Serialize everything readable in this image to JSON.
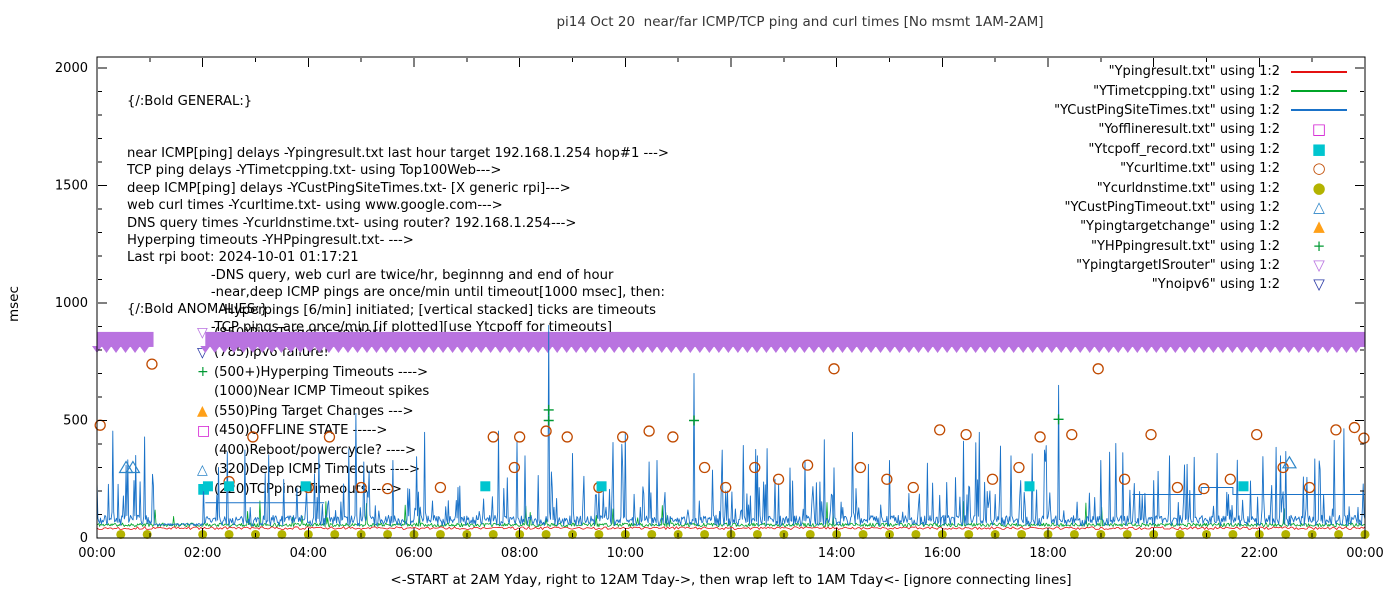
{
  "title": "pi14 Oct 20  near/far ICMP/TCP ping and curl times [No msmt 1AM-2AM]",
  "axes": {
    "ylabel": "msec",
    "xlabel": "<-START at 2AM Yday, right to 12AM Tday->, then wrap left to 1AM Tday<- [ignore connecting lines]",
    "y_ticks": [
      0,
      500,
      1000,
      1500,
      2000
    ],
    "x_tick_labels": [
      "00:00",
      "02:00",
      "04:00",
      "06:00",
      "08:00",
      "10:00",
      "12:00",
      "14:00",
      "16:00",
      "18:00",
      "20:00",
      "22:00",
      "00:00"
    ],
    "ylim": [
      0,
      2000
    ],
    "xlim_hours": [
      0,
      24
    ],
    "grid": false
  },
  "general": {
    "header": "{/:Bold GENERAL:}",
    "lines": [
      "near ICMP[ping] delays -Ypingresult.txt last hour target 192.168.1.254 hop#1 --->",
      "TCP ping delays -YTimetcpping.txt- using Top100Web--->",
      "deep ICMP[ping] delays -YCustPingSiteTimes.txt- [X generic rpi]--->",
      "web curl times -Ycurltime.txt- using www.google.com--->",
      "DNS query times -Ycurldnstime.txt- using router? 192.168.1.254--->",
      "Hyperping timeouts -YHPpingresult.txt- --->",
      "Last rpi boot: 2024-10-01 01:17:21",
      "                    -DNS query, web curl are twice/hr, beginnng and end of hour",
      "                    -near,deep ICMP pings are once/min until timeout[1000 msec], then:",
      "                      -Hyperpings [6/min] initiated; [vertical stacked] ticks are timeouts",
      "                    -TCP pings are once/min [if plotted][use Ytcpoff for timeouts]"
    ]
  },
  "anomalies": {
    "header": "{/:Bold ANOMALIES:}",
    "items": [
      {
        "marker": "triangle-down-open",
        "color": "#b973e0",
        "text": "(850)PingTarget is router!"
      },
      {
        "marker": "triangle-down-open",
        "color": "#2636a4",
        "text": "(785)ipv6 failure!"
      },
      {
        "marker": "plus",
        "color": "#009933",
        "text": "(500+)Hyperping Timeouts ---->"
      },
      {
        "marker": "",
        "color": "#000000",
        "text": "(1000)Near ICMP Timeout spikes"
      },
      {
        "marker": "triangle-up-filled",
        "color": "#ffa018",
        "text": "(550)Ping Target Changes --->"
      },
      {
        "marker": "square-open",
        "color": "#d218d2",
        "text": "(450)OFFLINE STATE ----->"
      },
      {
        "marker": "",
        "color": "#000000",
        "text": "(400)Reboot/powercycle? ---->"
      },
      {
        "marker": "triangle-up-open",
        "color": "#2e86c8",
        "text": "(320)Deep ICMP Timeouts ---->"
      },
      {
        "marker": "square-filled",
        "color": "#00c5cf",
        "text": "(220)TCPping Timeouts ---->"
      }
    ]
  },
  "legend": [
    {
      "label": "\"Ypingresult.txt\" using 1:2",
      "sample": "line",
      "color": "#e41111"
    },
    {
      "label": "\"YTimetcpping.txt\" using 1:2",
      "sample": "line",
      "color": "#00a428"
    },
    {
      "label": "\"YCustPingSiteTimes.txt\" using 1:2",
      "sample": "line",
      "color": "#1a72c8"
    },
    {
      "label": "\"Yofflineresult.txt\" using 1:2",
      "sample": "square-open",
      "color": "#d218d2"
    },
    {
      "label": "\"Ytcpoff_record.txt\" using 1:2",
      "sample": "square-filled",
      "color": "#00c5cf"
    },
    {
      "label": "\"Ycurltime.txt\" using 1:2",
      "sample": "circle-open",
      "color": "#c04a00"
    },
    {
      "label": "\"Ycurldnstime.txt\" using 1:2",
      "sample": "circle-filled",
      "color": "#b3b300"
    },
    {
      "label": "\"YCustPingTimeout.txt\" using 1:2",
      "sample": "triangle-up-open",
      "color": "#2e86c8"
    },
    {
      "label": "\"Ypingtargetchange\" using 1:2",
      "sample": "triangle-up-filled",
      "color": "#ffa018"
    },
    {
      "label": "\"YHPpingresult.txt\" using 1:2",
      "sample": "plus",
      "color": "#009933"
    },
    {
      "label": "\"YpingtargetISrouter\" using 1:2",
      "sample": "triangle-down-open",
      "color": "#b973e0"
    },
    {
      "label": "\"Ynoipv6\" using 1:2",
      "sample": "triangle-down-open",
      "color": "#2636a4"
    }
  ],
  "chart_data": {
    "type": "line",
    "title": "pi14 Oct 20  near/far ICMP/TCP ping and curl times [No msmt 1AM-2AM]",
    "xlabel": "<-START at 2AM Yday, right to 12AM Tday->, then wrap left to 1AM Tday<- [ignore connecting lines]",
    "ylabel": "msec",
    "xlim_hours": [
      0,
      24
    ],
    "ylim": [
      0,
      2000
    ],
    "no_measurement_gap_hours": [
      1.0,
      2.0
    ],
    "series": [
      {
        "name": "Ypingresult.txt",
        "color": "#e41111",
        "style": "noisy-line",
        "baseline": 36,
        "noise": 12,
        "step_minutes": 2,
        "seed": 13
      },
      {
        "name": "YTimetcpping.txt",
        "color": "#00a428",
        "style": "noisy-line",
        "baseline": 48,
        "noise": 16,
        "minor_spike_prob": 0.02,
        "minor_spike_range": [
          80,
          170
        ],
        "step_minutes": 1,
        "seed": 11
      },
      {
        "name": "YCustPingSiteTimes.txt",
        "color": "#1a72c8",
        "style": "noisy-line",
        "baseline": 52,
        "noise": 45,
        "minor_spike_prob": 0.1,
        "minor_spike_range": [
          110,
          240
        ],
        "major_spike_prob": 0.045,
        "major_spike_range": [
          240,
          420
        ],
        "quiet_range_hours": [
          1.08,
          2.0
        ],
        "step_minutes": 1,
        "seed": 7,
        "big_spikes": [
          [
            0.3,
            455
          ],
          [
            0.55,
            310
          ],
          [
            0.9,
            430
          ],
          [
            2.3,
            300
          ],
          [
            4.2,
            360
          ],
          [
            4.9,
            530
          ],
          [
            5.6,
            330
          ],
          [
            6.2,
            450
          ],
          [
            7.6,
            455
          ],
          [
            8.1,
            350
          ],
          [
            8.55,
            905
          ],
          [
            9.0,
            360
          ],
          [
            10.0,
            450
          ],
          [
            10.6,
            330
          ],
          [
            11.3,
            700
          ],
          [
            12.5,
            350
          ],
          [
            13.4,
            330
          ],
          [
            14.3,
            450
          ],
          [
            15.0,
            330
          ],
          [
            16.7,
            450
          ],
          [
            17.3,
            350
          ],
          [
            18.2,
            650
          ],
          [
            19.0,
            330
          ],
          [
            20.3,
            350
          ],
          [
            21.2,
            360
          ],
          [
            22.4,
            350
          ],
          [
            23.6,
            465
          ]
        ]
      }
    ],
    "extra_segments": [
      {
        "name": "YCustPingSiteTimes-elevated",
        "color": "#1a72c8",
        "points": [
          [
            19.6,
            185
          ],
          [
            20.9,
            185
          ],
          [
            20.9,
            215
          ],
          [
            21.5,
            215
          ],
          [
            21.5,
            185
          ],
          [
            24,
            185
          ]
        ]
      },
      {
        "name": "YCustPingSiteTimes-elevated2",
        "color": "#1a72c8",
        "points": [
          [
            2.05,
            150
          ],
          [
            4.3,
            150
          ]
        ]
      }
    ],
    "markers": {
      "curl_times": {
        "shape": "circle-open",
        "color": "#c04a00",
        "points": [
          [
            0.06,
            480
          ],
          [
            1.04,
            740
          ],
          [
            2.5,
            240
          ],
          [
            2.95,
            430
          ],
          [
            4.0,
            215
          ],
          [
            4.4,
            430
          ],
          [
            5.0,
            215
          ],
          [
            5.5,
            210
          ],
          [
            6.5,
            215
          ],
          [
            7.5,
            430
          ],
          [
            7.9,
            300
          ],
          [
            8.0,
            430
          ],
          [
            8.5,
            455
          ],
          [
            8.9,
            430
          ],
          [
            9.5,
            215
          ],
          [
            9.95,
            430
          ],
          [
            10.45,
            455
          ],
          [
            10.9,
            430
          ],
          [
            11.5,
            300
          ],
          [
            11.9,
            215
          ],
          [
            12.45,
            300
          ],
          [
            12.9,
            250
          ],
          [
            13.45,
            310
          ],
          [
            13.95,
            720
          ],
          [
            14.45,
            300
          ],
          [
            14.95,
            250
          ],
          [
            15.45,
            215
          ],
          [
            15.95,
            460
          ],
          [
            16.45,
            440
          ],
          [
            16.95,
            250
          ],
          [
            17.45,
            300
          ],
          [
            17.85,
            430
          ],
          [
            18.45,
            440
          ],
          [
            18.95,
            720
          ],
          [
            19.45,
            250
          ],
          [
            19.95,
            440
          ],
          [
            20.45,
            215
          ],
          [
            20.95,
            210
          ],
          [
            21.45,
            250
          ],
          [
            21.95,
            440
          ],
          [
            22.45,
            300
          ],
          [
            22.95,
            215
          ],
          [
            23.45,
            460
          ],
          [
            23.8,
            470
          ],
          [
            23.98,
            425
          ]
        ]
      },
      "dns_times": {
        "shape": "circle-filled",
        "color": "#b3b300",
        "y": 15,
        "xs_spec": {
          "start": 2.0,
          "end": 24.0,
          "step": 0.5,
          "extra": [
            0.45,
            0.95
          ]
        }
      },
      "tcp_timeouts": {
        "shape": "square-filled",
        "color": "#00c5cf",
        "y": 220,
        "xs": [
          2.1,
          2.5,
          3.95,
          7.35,
          9.55,
          17.65,
          21.7
        ]
      },
      "deep_timeouts": {
        "shape": "triangle-up-open",
        "color": "#2e86c8",
        "points": [
          [
            0.55,
            300
          ],
          [
            0.68,
            300
          ],
          [
            22.57,
            320
          ]
        ]
      },
      "hyperping_timeouts": {
        "shape": "plus",
        "color": "#009933",
        "points": [
          [
            8.55,
            500
          ],
          [
            8.55,
            545
          ],
          [
            11.3,
            500
          ],
          [
            18.2,
            505
          ]
        ]
      },
      "router_band": {
        "shape": "band-triangle-down",
        "color": "#b973e0",
        "y_center": 845,
        "half_height": 32,
        "segments": [
          [
            0.0,
            1.07
          ],
          [
            2.05,
            24.0
          ]
        ]
      }
    }
  }
}
